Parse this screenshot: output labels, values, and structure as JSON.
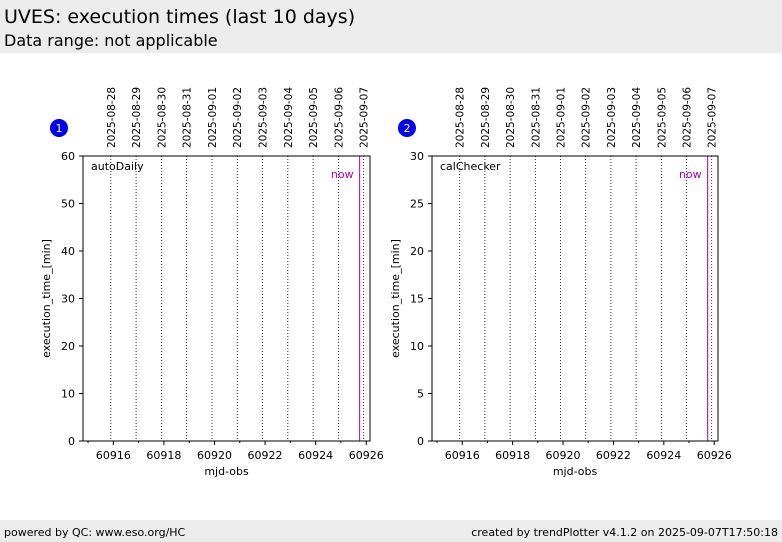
{
  "header": {
    "title": "UVES: execution times (last 10 days)",
    "subtitle": "Data range: not applicable"
  },
  "footer": {
    "left": "powered by QC: www.eso.org/HC",
    "right": "created by trendPlotter v4.1.2 on 2025-09-07T17:50:18"
  },
  "colors": {
    "now_line": "#b000b0",
    "badge": "#0000ee",
    "header_bg": "#ececec"
  },
  "chart_data": [
    {
      "type": "line",
      "badge": "1",
      "panel_label": "autoDaily",
      "now_label": "now",
      "xlabel": "mjd-obs",
      "ylabel": "execution_time_[min]",
      "xlim": [
        60914.8,
        60926.15
      ],
      "ylim": [
        0,
        60
      ],
      "x_ticks": [
        60916,
        60918,
        60920,
        60922,
        60924,
        60926
      ],
      "y_ticks": [
        0,
        10,
        20,
        30,
        40,
        50,
        60
      ],
      "date_ticks": [
        {
          "mjd": 60915.9,
          "label": "2025-08-28"
        },
        {
          "mjd": 60916.9,
          "label": "2025-08-29"
        },
        {
          "mjd": 60917.9,
          "label": "2025-08-30"
        },
        {
          "mjd": 60918.9,
          "label": "2025-08-31"
        },
        {
          "mjd": 60919.9,
          "label": "2025-09-01"
        },
        {
          "mjd": 60920.9,
          "label": "2025-09-02"
        },
        {
          "mjd": 60921.9,
          "label": "2025-09-03"
        },
        {
          "mjd": 60922.9,
          "label": "2025-09-04"
        },
        {
          "mjd": 60923.9,
          "label": "2025-09-05"
        },
        {
          "mjd": 60924.9,
          "label": "2025-09-06"
        },
        {
          "mjd": 60925.9,
          "label": "2025-09-07"
        }
      ],
      "now_mjd": 60925.74,
      "series": []
    },
    {
      "type": "line",
      "badge": "2",
      "panel_label": "calChecker",
      "now_label": "now",
      "xlabel": "mjd-obs",
      "ylabel": "execution_time_[min]",
      "xlim": [
        60914.8,
        60926.15
      ],
      "ylim": [
        0,
        30
      ],
      "x_ticks": [
        60916,
        60918,
        60920,
        60922,
        60924,
        60926
      ],
      "y_ticks": [
        0,
        5,
        10,
        15,
        20,
        25,
        30
      ],
      "date_ticks": [
        {
          "mjd": 60915.9,
          "label": "2025-08-28"
        },
        {
          "mjd": 60916.9,
          "label": "2025-08-29"
        },
        {
          "mjd": 60917.9,
          "label": "2025-08-30"
        },
        {
          "mjd": 60918.9,
          "label": "2025-08-31"
        },
        {
          "mjd": 60919.9,
          "label": "2025-09-01"
        },
        {
          "mjd": 60920.9,
          "label": "2025-09-02"
        },
        {
          "mjd": 60921.9,
          "label": "2025-09-03"
        },
        {
          "mjd": 60922.9,
          "label": "2025-09-04"
        },
        {
          "mjd": 60923.9,
          "label": "2025-09-05"
        },
        {
          "mjd": 60924.9,
          "label": "2025-09-06"
        },
        {
          "mjd": 60925.9,
          "label": "2025-09-07"
        }
      ],
      "now_mjd": 60925.74,
      "series": []
    }
  ]
}
